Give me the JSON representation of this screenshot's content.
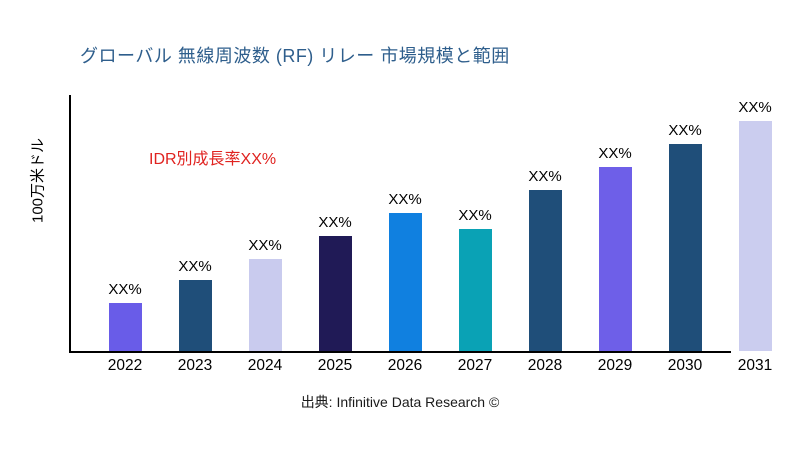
{
  "page": {
    "background_color": "#ffffff",
    "title_color": "#2e5e8c",
    "annotation_color": "#e02320",
    "axis_color": "#000000"
  },
  "chart_data": {
    "type": "bar",
    "title": "グローバル 無線周波数 (RF) リレー 市場規模と範囲",
    "ylabel": "100万米ドル",
    "xlabel": "",
    "annotation": "IDR別成長率XX%",
    "source": "出典: Infinitive Data Research ©",
    "categories": [
      "2022",
      "2023",
      "2024",
      "2025",
      "2026",
      "2027",
      "2028",
      "2029",
      "2030",
      "2031"
    ],
    "values": [
      21,
      31,
      40,
      50,
      60,
      53,
      70,
      80,
      90,
      100
    ],
    "bar_labels": [
      "XX%",
      "XX%",
      "XX%",
      "XX%",
      "XX%",
      "XX%",
      "XX%",
      "XX%",
      "XX%",
      "XX%"
    ],
    "bar_colors": [
      "#695ce8",
      "#1f4e79",
      "#c9cbee",
      "#201a56",
      "#1080e0",
      "#0aa2b5",
      "#1f4e79",
      "#6e5fe8",
      "#1f4e79",
      "#cbcdef"
    ],
    "ylim": [
      0,
      100
    ],
    "grid": false,
    "legend": false
  }
}
